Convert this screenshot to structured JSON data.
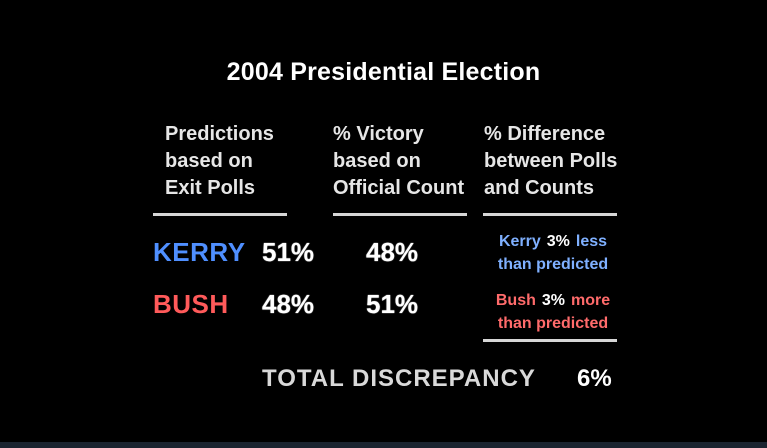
{
  "title": "2004 Presidential Election",
  "headers": {
    "col1": [
      "Predictions",
      "based on",
      "Exit Polls"
    ],
    "col2": [
      "% Victory",
      "based on",
      "Official Count"
    ],
    "col3": [
      "% Difference",
      "between Polls",
      "and Counts"
    ]
  },
  "rows": [
    {
      "candidate": "KERRY",
      "predicted": "51%",
      "official": "48%",
      "diff_name": "Kerry",
      "diff_value": "3%",
      "diff_word": "less",
      "diff_line2": "than predicted"
    },
    {
      "candidate": "BUSH",
      "predicted": "48%",
      "official": "51%",
      "diff_name": "Bush",
      "diff_value": "3%",
      "diff_word": "more",
      "diff_line2": "than predicted"
    }
  ],
  "total": {
    "label": "TOTAL DISCREPANCY",
    "value": "6%"
  },
  "colors": {
    "background": "#000000",
    "kerry": "#4f8fff",
    "bush": "#ff5a5a"
  }
}
